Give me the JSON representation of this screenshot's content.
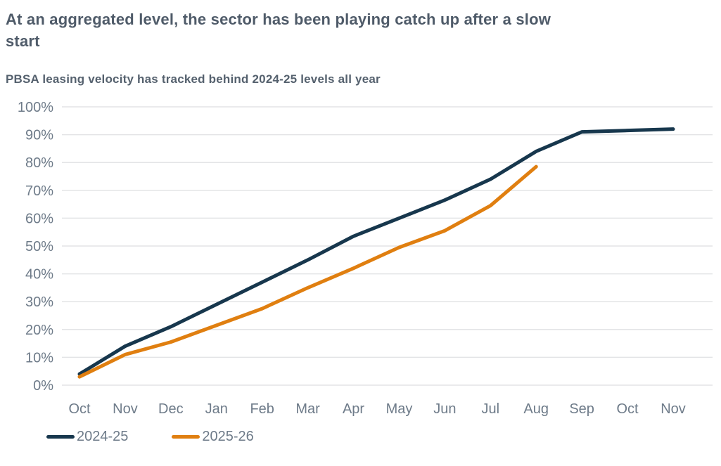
{
  "header": {
    "title": "At an aggregated level, the sector has been playing catch up after a slow start",
    "subtitle": "PBSA leasing velocity has tracked behind 2024-25 levels all year"
  },
  "chart_data": {
    "type": "line",
    "categories": [
      "Oct",
      "Nov",
      "Dec",
      "Jan",
      "Feb",
      "Mar",
      "Apr",
      "May",
      "Jun",
      "Jul",
      "Aug",
      "Sep",
      "Oct",
      "Nov"
    ],
    "series": [
      {
        "name": "2024-25",
        "color": "#17374d",
        "values": [
          4,
          14,
          21,
          29,
          37,
          45,
          53.5,
          60,
          66.5,
          74,
          84,
          91,
          91.5,
          92
        ]
      },
      {
        "name": "2025-26",
        "color": "#e07f10",
        "values": [
          3,
          11,
          15.5,
          21.5,
          27.5,
          35,
          42,
          49.5,
          55.5,
          64.5,
          78.5
        ]
      }
    ],
    "title": "PBSA leasing velocity has tracked behind 2024-25 levels all year",
    "xlabel": "",
    "ylabel": "",
    "ylim": [
      0,
      100
    ],
    "ytick_step": 10,
    "ytick_suffix": "%",
    "grid": "horizontal",
    "legend_position": "bottom-left"
  },
  "colors": {
    "title_text": "#4f5b69",
    "axis_label": "#6e7b89",
    "gridline": "#e3e4e6",
    "background": "#ffffff",
    "series_2024_25": "#17374d",
    "series_2025_26": "#e07f10"
  }
}
